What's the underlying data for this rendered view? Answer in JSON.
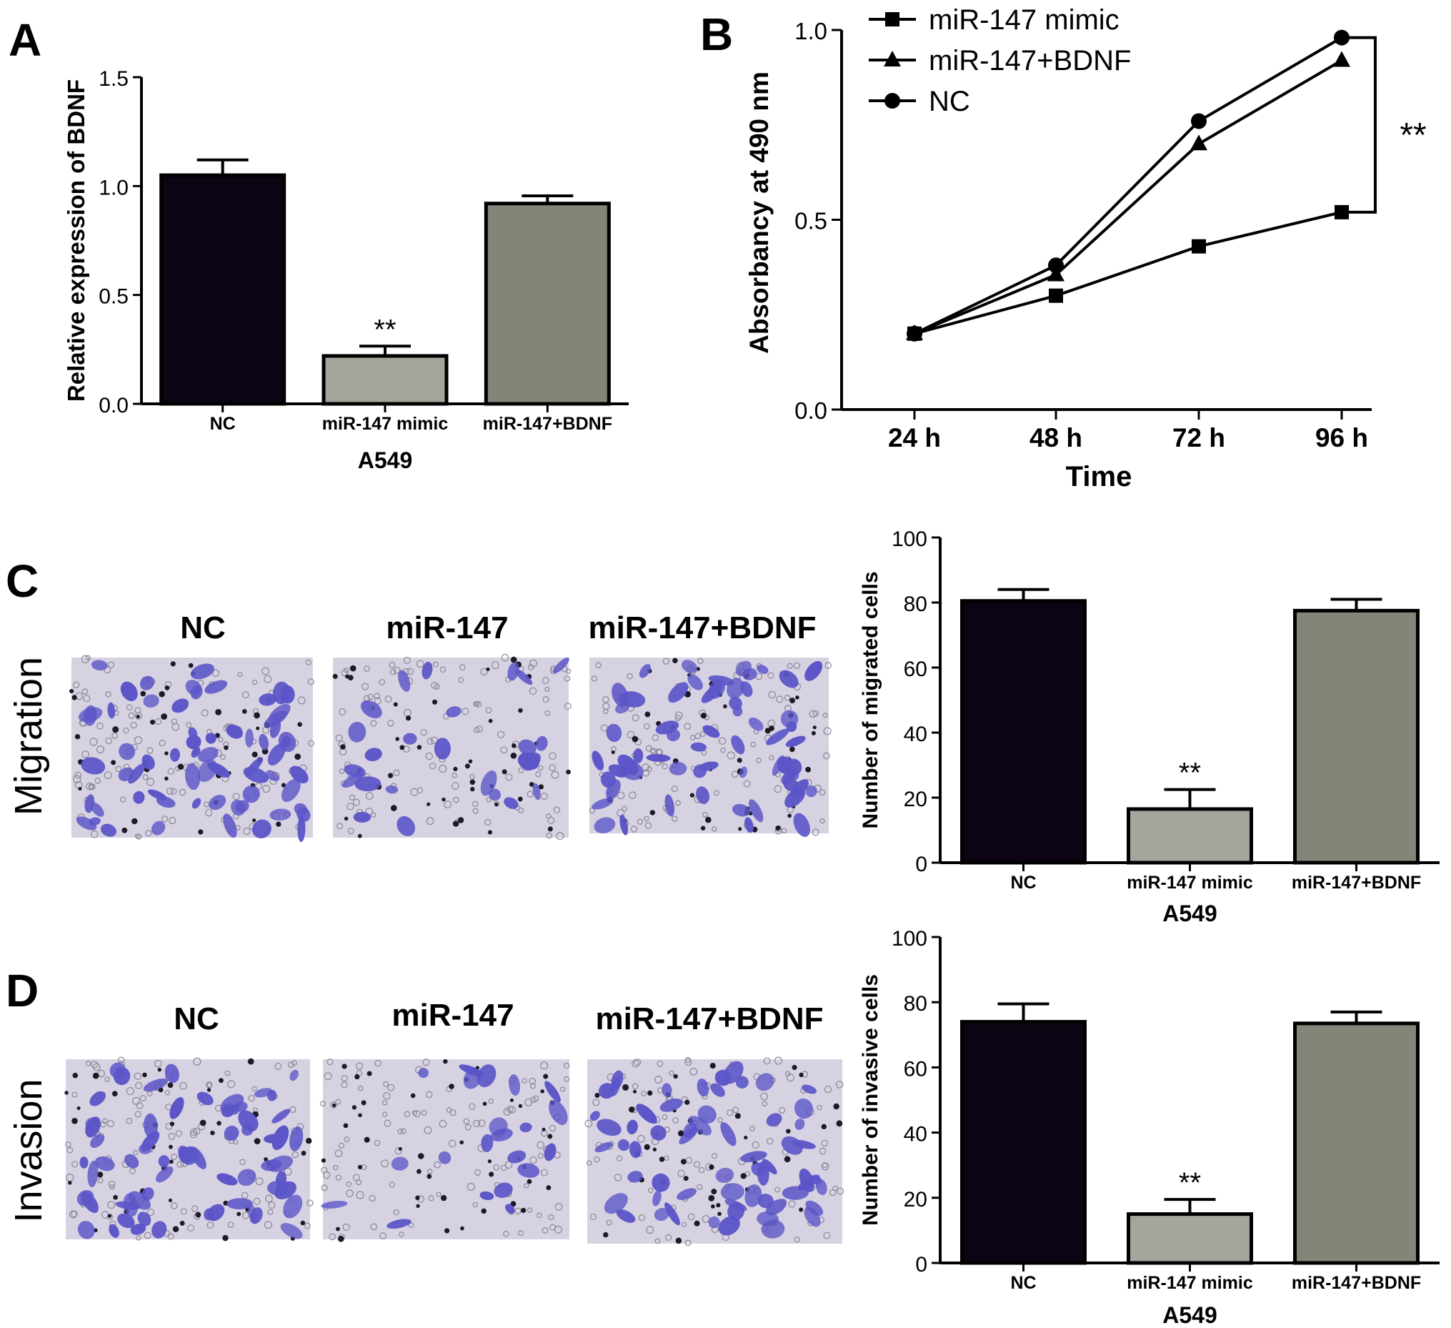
{
  "panel_letters": [
    "A",
    "B",
    "C",
    "D"
  ],
  "panel_c": {
    "row_label": "Migration",
    "image_labels": [
      "NC",
      "miR-147",
      "miR-147+BDNF"
    ],
    "micrographs": [
      {
        "cell_density": 0.9,
        "stain_color": "#5b55c8"
      },
      {
        "cell_density": 0.35,
        "stain_color": "#5b55c8"
      },
      {
        "cell_density": 0.85,
        "stain_color": "#5b55c8"
      }
    ]
  },
  "panel_d": {
    "row_label": "Invasion",
    "image_labels": [
      "NC",
      "miR-147",
      "miR-147+BDNF"
    ],
    "micrographs": [
      {
        "cell_density": 0.9,
        "stain_color": "#5b55c8"
      },
      {
        "cell_density": 0.3,
        "stain_color": "#5b55c8"
      },
      {
        "cell_density": 0.85,
        "stain_color": "#5b55c8"
      }
    ]
  },
  "colors": {
    "nc_bar": "#0c0412",
    "mimic_bar": "#a4a69c",
    "bdnf_bar": "#848479",
    "micrograph_bg": "#d7d2e2"
  },
  "chart_data": [
    {
      "id": "A",
      "type": "bar",
      "categories": [
        "NC",
        "miR-147 mimic",
        "miR-147+BDNF"
      ],
      "values": [
        1.05,
        0.22,
        0.92
      ],
      "errors": [
        0.07,
        0.045,
        0.035
      ],
      "annotations": [
        "",
        "**",
        ""
      ],
      "xlabel": "A549",
      "ylabel": "Relative expression of BDNF",
      "ylim": [
        0,
        1.5
      ],
      "yticks": [
        "0.0",
        "0.5",
        "1.0",
        "1.5"
      ],
      "grid": false
    },
    {
      "id": "B",
      "type": "line",
      "categories": [
        "24 h",
        "48 h",
        "72 h",
        "96 h"
      ],
      "series": [
        {
          "name": "miR-147 mimic",
          "marker": "square",
          "values": [
            0.2,
            0.3,
            0.43,
            0.52
          ]
        },
        {
          "name": "miR-147+BDNF",
          "marker": "triangle",
          "values": [
            0.2,
            0.355,
            0.7,
            0.92
          ]
        },
        {
          "name": "NC",
          "marker": "circle",
          "values": [
            0.2,
            0.38,
            0.76,
            0.98
          ]
        }
      ],
      "significance": "**",
      "xlabel": "Time",
      "ylabel": "Absorbancy at 490 nm",
      "ylim": [
        0,
        1.0
      ],
      "yticks": [
        "0.0",
        "0.5",
        "1.0"
      ],
      "legend": "top-left",
      "grid": false
    },
    {
      "id": "C",
      "type": "bar",
      "categories": [
        "NC",
        "miR-147 mimic",
        "miR-147+BDNF"
      ],
      "values": [
        80.5,
        16.5,
        77.5
      ],
      "errors": [
        3.5,
        6.0,
        3.5
      ],
      "annotations": [
        "",
        "**",
        ""
      ],
      "xlabel": "A549",
      "ylabel": "Number of migrated cells",
      "ylim": [
        0,
        100
      ],
      "yticks": [
        "0",
        "20",
        "40",
        "60",
        "80",
        "100"
      ],
      "grid": false
    },
    {
      "id": "D",
      "type": "bar",
      "categories": [
        "NC",
        "miR-147 mimic",
        "miR-147+BDNF"
      ],
      "values": [
        74,
        15,
        73.5
      ],
      "errors": [
        5.5,
        4.5,
        3.5
      ],
      "annotations": [
        "",
        "**",
        ""
      ],
      "xlabel": "A549",
      "ylabel": "Number of invasive cells",
      "ylim": [
        0,
        100
      ],
      "yticks": [
        "0",
        "20",
        "40",
        "60",
        "80",
        "100"
      ],
      "grid": false
    }
  ]
}
